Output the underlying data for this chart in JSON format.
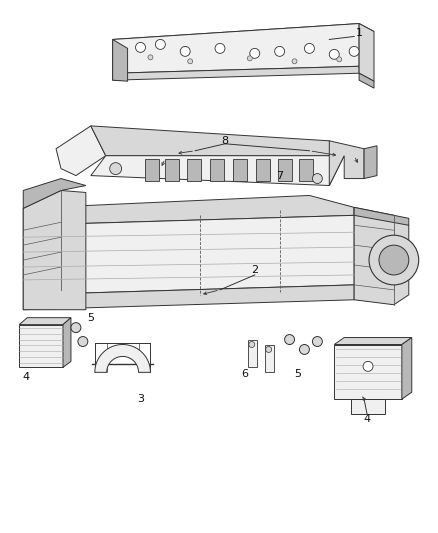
{
  "background_color": "#ffffff",
  "lc": "#5a5a5a",
  "lc_light": "#aaaaaa",
  "lc_dark": "#333333",
  "fill_light": "#f0f0f0",
  "fill_mid": "#d8d8d8",
  "fill_dark": "#b8b8b8",
  "fig_width": 4.38,
  "fig_height": 5.33,
  "dpi": 100
}
